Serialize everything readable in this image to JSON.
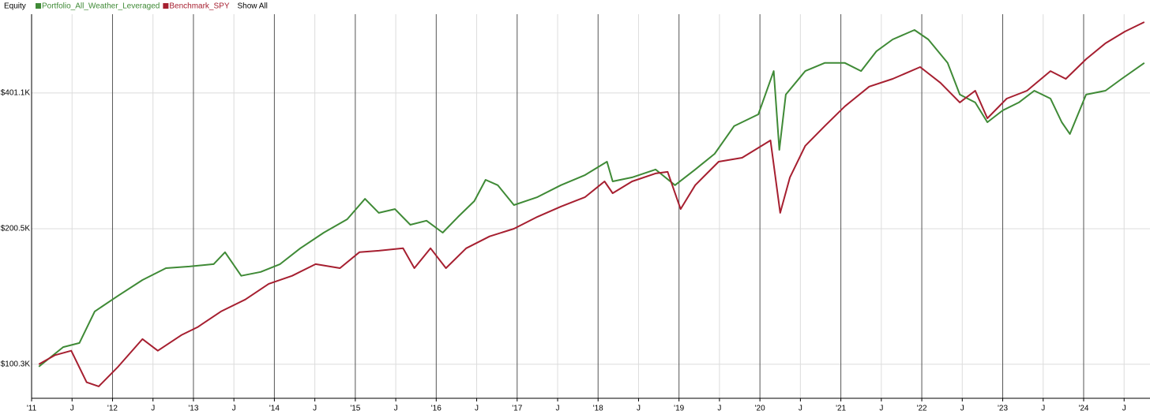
{
  "chart_data": {
    "type": "line",
    "title": "Equity",
    "show_all_label": "Show All",
    "log_scale": true,
    "grid": true,
    "xlim": [
      2011,
      2024.82
    ],
    "xticks": [
      {
        "value": 2011,
        "label": "'11"
      },
      {
        "value": 2011.5,
        "label": "J"
      },
      {
        "value": 2012,
        "label": "'12"
      },
      {
        "value": 2012.5,
        "label": "J"
      },
      {
        "value": 2013,
        "label": "'13"
      },
      {
        "value": 2013.5,
        "label": "J"
      },
      {
        "value": 2014,
        "label": "'14"
      },
      {
        "value": 2014.5,
        "label": "J"
      },
      {
        "value": 2015,
        "label": "'15"
      },
      {
        "value": 2015.5,
        "label": "J"
      },
      {
        "value": 2016,
        "label": "'16"
      },
      {
        "value": 2016.5,
        "label": "J"
      },
      {
        "value": 2017,
        "label": "'17"
      },
      {
        "value": 2017.5,
        "label": "J"
      },
      {
        "value": 2018,
        "label": "'18"
      },
      {
        "value": 2018.5,
        "label": "J"
      },
      {
        "value": 2019,
        "label": "'19"
      },
      {
        "value": 2019.5,
        "label": "J"
      },
      {
        "value": 2020,
        "label": "'20"
      },
      {
        "value": 2020.5,
        "label": "J"
      },
      {
        "value": 2021,
        "label": "'21"
      },
      {
        "value": 2021.5,
        "label": "J"
      },
      {
        "value": 2022,
        "label": "'22"
      },
      {
        "value": 2022.5,
        "label": "J"
      },
      {
        "value": 2023,
        "label": "'23"
      },
      {
        "value": 2023.5,
        "label": "J"
      },
      {
        "value": 2024,
        "label": "'24"
      },
      {
        "value": 2024.5,
        "label": "J"
      }
    ],
    "ylim": [
      84300,
      600000
    ],
    "yticks": [
      {
        "value": 100300,
        "label": "$100.3K"
      },
      {
        "value": 200500,
        "label": "$200.5K"
      },
      {
        "value": 401100,
        "label": "$401.1K"
      }
    ],
    "series": [
      {
        "name": "Portfolio_All_Weather_Leveraged",
        "color": "#3f8a36",
        "x": [
          2011.09,
          2011.39,
          2011.59,
          2011.78,
          2012.07,
          2012.37,
          2012.66,
          2012.95,
          2013.25,
          2013.39,
          2013.59,
          2013.83,
          2014.07,
          2014.32,
          2014.61,
          2014.9,
          2015.12,
          2015.29,
          2015.49,
          2015.68,
          2015.88,
          2016.08,
          2016.27,
          2016.47,
          2016.61,
          2016.76,
          2016.96,
          2017.25,
          2017.54,
          2017.84,
          2018.11,
          2018.18,
          2018.42,
          2018.71,
          2018.95,
          2019.2,
          2019.44,
          2019.68,
          2019.98,
          2020.17,
          2020.24,
          2020.32,
          2020.56,
          2020.8,
          2021.05,
          2021.25,
          2021.44,
          2021.64,
          2021.91,
          2022.08,
          2022.32,
          2022.47,
          2022.66,
          2022.81,
          2023.0,
          2023.2,
          2023.39,
          2023.59,
          2023.73,
          2023.83,
          2024.03,
          2024.27,
          2024.47,
          2024.75
        ],
        "values": [
          99100,
          109500,
          111800,
          131400,
          142400,
          154300,
          163900,
          165300,
          167300,
          177800,
          157600,
          160800,
          167300,
          181400,
          196500,
          210400,
          233600,
          217400,
          221700,
          204600,
          208900,
          196500,
          213100,
          230900,
          257400,
          250400,
          226300,
          235700,
          250400,
          263800,
          282400,
          255300,
          260600,
          271400,
          250400,
          271400,
          294000,
          338700,
          359700,
          448800,
          300000,
          397900,
          448800,
          467700,
          467700,
          448800,
          496600,
          527500,
          553500,
          527500,
          467700,
          397900,
          382200,
          345500,
          367000,
          382200,
          405900,
          389900,
          345500,
          325300,
          397900,
          405900,
          431200,
          467700
        ]
      },
      {
        "name": "Benchmark_SPY",
        "color": "#a61f30",
        "x": [
          2011.09,
          2011.29,
          2011.49,
          2011.68,
          2011.83,
          2012.07,
          2012.37,
          2012.56,
          2012.85,
          2013.05,
          2013.34,
          2013.64,
          2013.93,
          2014.22,
          2014.51,
          2014.81,
          2015.05,
          2015.29,
          2015.59,
          2015.73,
          2015.93,
          2016.12,
          2016.37,
          2016.66,
          2016.96,
          2017.25,
          2017.54,
          2017.84,
          2018.08,
          2018.18,
          2018.42,
          2018.71,
          2018.86,
          2019.02,
          2019.2,
          2019.49,
          2019.78,
          2020.13,
          2020.25,
          2020.37,
          2020.56,
          2020.8,
          2021.05,
          2021.35,
          2021.64,
          2021.98,
          2022.23,
          2022.47,
          2022.66,
          2022.81,
          2023.05,
          2023.3,
          2023.59,
          2023.78,
          2024.03,
          2024.27,
          2024.51,
          2024.75
        ],
        "values": [
          100300,
          105100,
          107500,
          91500,
          89600,
          99100,
          114100,
          107500,
          116400,
          121200,
          131400,
          139600,
          151300,
          157600,
          167300,
          163900,
          177800,
          179200,
          181400,
          163900,
          181400,
          163900,
          181400,
          192800,
          200500,
          213100,
          224500,
          235700,
          255300,
          240400,
          255300,
          265900,
          268100,
          221700,
          250400,
          282400,
          288200,
          314900,
          217400,
          260600,
          306200,
          338700,
          374700,
          414400,
          431200,
          458100,
          422800,
          382200,
          405900,
          352500,
          389900,
          405900,
          448800,
          431200,
          476900,
          517100,
          549200,
          576400
        ]
      }
    ]
  }
}
